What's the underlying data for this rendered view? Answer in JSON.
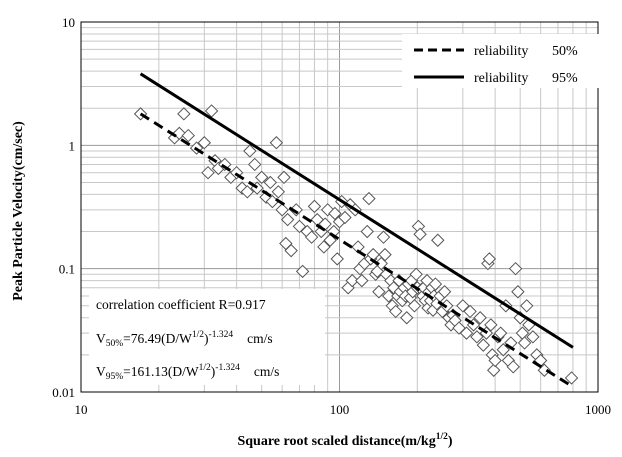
{
  "chart_data": {
    "type": "scatter",
    "xlabel": "Square root scaled distance(m/kg",
    "xlabel_sup": "1/2",
    "xlabel_tail": ")",
    "ylabel": "Peak Particle Velocity(cm/sec)",
    "x_scale": "log",
    "y_scale": "log",
    "xlim": [
      10,
      1000
    ],
    "ylim": [
      0.01,
      10
    ],
    "x_ticks": [
      "10",
      "100",
      "1000"
    ],
    "y_ticks": [
      "0.01",
      "0.1",
      "1",
      "10"
    ],
    "grid": true,
    "legend_position": "top-right",
    "legend": [
      {
        "label": "reliability",
        "value": "50%",
        "style": "dashed"
      },
      {
        "label": "reliability",
        "value": "95%",
        "style": "solid"
      }
    ],
    "annotations": {
      "correlation": "correlation  coefficient  R=0.917",
      "eq50": {
        "v": "V",
        "vsub": "50%",
        "pre": "=76.49(D/W",
        "sup1": "1/2",
        "mid": ")",
        "sup2": "-1.324",
        "unit": "cm/s"
      },
      "eq95": {
        "v": "V",
        "vsub": "95%",
        "pre": "=161.13(D/W",
        "sup1": "1/2",
        "mid": ")",
        "sup2": "-1.324",
        "unit": "cm/s"
      }
    },
    "series": [
      {
        "name": "reliability 50%",
        "type": "line",
        "style": "dashed",
        "x": [
          17,
          800
        ],
        "y": [
          1.8,
          0.011
        ]
      },
      {
        "name": "reliability 95%",
        "type": "line",
        "style": "solid",
        "x": [
          17,
          800
        ],
        "y": [
          3.8,
          0.023
        ]
      },
      {
        "type": "scatter",
        "marker": "diamond",
        "points": [
          [
            17,
            1.8
          ],
          [
            23,
            1.15
          ],
          [
            24,
            1.25
          ],
          [
            25,
            1.8
          ],
          [
            26,
            1.2
          ],
          [
            28,
            0.95
          ],
          [
            30,
            1.05
          ],
          [
            31,
            0.6
          ],
          [
            32,
            1.9
          ],
          [
            33,
            0.75
          ],
          [
            34,
            0.65
          ],
          [
            36,
            0.7
          ],
          [
            38,
            0.55
          ],
          [
            40,
            0.6
          ],
          [
            42,
            0.45
          ],
          [
            44,
            0.42
          ],
          [
            45,
            0.9
          ],
          [
            47,
            0.7
          ],
          [
            48,
            0.45
          ],
          [
            50,
            0.55
          ],
          [
            52,
            0.38
          ],
          [
            54,
            0.5
          ],
          [
            55,
            0.35
          ],
          [
            57,
            1.05
          ],
          [
            58,
            0.42
          ],
          [
            60,
            0.3
          ],
          [
            61,
            0.55
          ],
          [
            62,
            0.16
          ],
          [
            63,
            0.25
          ],
          [
            65,
            0.14
          ],
          [
            68,
            0.3
          ],
          [
            70,
            0.22
          ],
          [
            72,
            0.095
          ],
          [
            75,
            0.2
          ],
          [
            78,
            0.18
          ],
          [
            80,
            0.32
          ],
          [
            82,
            0.25
          ],
          [
            85,
            0.2
          ],
          [
            87,
            0.15
          ],
          [
            88,
            0.23
          ],
          [
            90,
            0.3
          ],
          [
            92,
            0.17
          ],
          [
            95,
            0.2
          ],
          [
            96,
            0.28
          ],
          [
            98,
            0.12
          ],
          [
            100,
            0.24
          ],
          [
            102,
            0.35
          ],
          [
            105,
            0.26
          ],
          [
            108,
            0.07
          ],
          [
            110,
            0.33
          ],
          [
            112,
            0.08
          ],
          [
            115,
            0.3
          ],
          [
            118,
            0.15
          ],
          [
            120,
            0.1
          ],
          [
            122,
            0.08
          ],
          [
            125,
            0.11
          ],
          [
            128,
            0.2
          ],
          [
            130,
            0.37
          ],
          [
            132,
            0.12
          ],
          [
            135,
            0.13
          ],
          [
            138,
            0.09
          ],
          [
            140,
            0.095
          ],
          [
            142,
            0.065
          ],
          [
            145,
            0.11
          ],
          [
            148,
            0.18
          ],
          [
            150,
            0.13
          ],
          [
            152,
            0.09
          ],
          [
            155,
            0.06
          ],
          [
            158,
            0.08
          ],
          [
            160,
            0.05
          ],
          [
            162,
            0.07
          ],
          [
            165,
            0.045
          ],
          [
            168,
            0.06
          ],
          [
            170,
            0.08
          ],
          [
            172,
            0.065
          ],
          [
            175,
            0.055
          ],
          [
            178,
            0.07
          ],
          [
            180,
            0.06
          ],
          [
            182,
            0.04
          ],
          [
            185,
            0.075
          ],
          [
            188,
            0.058
          ],
          [
            190,
            0.08
          ],
          [
            192,
            0.065
          ],
          [
            195,
            0.05
          ],
          [
            198,
            0.09
          ],
          [
            200,
            0.07
          ],
          [
            202,
            0.22
          ],
          [
            205,
            0.19
          ],
          [
            208,
            0.068
          ],
          [
            210,
            0.06
          ],
          [
            212,
            0.07
          ],
          [
            215,
            0.055
          ],
          [
            218,
            0.08
          ],
          [
            220,
            0.048
          ],
          [
            222,
            0.065
          ],
          [
            225,
            0.055
          ],
          [
            228,
            0.07
          ],
          [
            230,
            0.046
          ],
          [
            232,
            0.06
          ],
          [
            235,
            0.075
          ],
          [
            238,
            0.052
          ],
          [
            240,
            0.17
          ],
          [
            245,
            0.06
          ],
          [
            250,
            0.045
          ],
          [
            255,
            0.065
          ],
          [
            260,
            0.05
          ],
          [
            265,
            0.04
          ],
          [
            270,
            0.035
          ],
          [
            275,
            0.042
          ],
          [
            280,
            0.038
          ],
          [
            290,
            0.033
          ],
          [
            300,
            0.05
          ],
          [
            310,
            0.03
          ],
          [
            320,
            0.045
          ],
          [
            330,
            0.035
          ],
          [
            340,
            0.028
          ],
          [
            350,
            0.04
          ],
          [
            360,
            0.024
          ],
          [
            370,
            0.03
          ],
          [
            375,
            0.11
          ],
          [
            380,
            0.12
          ],
          [
            385,
            0.035
          ],
          [
            390,
            0.02
          ],
          [
            395,
            0.015
          ],
          [
            400,
            0.018
          ],
          [
            410,
            0.028
          ],
          [
            420,
            0.03
          ],
          [
            430,
            0.022
          ],
          [
            440,
            0.05
          ],
          [
            450,
            0.018
          ],
          [
            460,
            0.025
          ],
          [
            470,
            0.016
          ],
          [
            480,
            0.1
          ],
          [
            490,
            0.065
          ],
          [
            500,
            0.04
          ],
          [
            510,
            0.03
          ],
          [
            520,
            0.025
          ],
          [
            530,
            0.05
          ],
          [
            540,
            0.035
          ],
          [
            560,
            0.028
          ],
          [
            580,
            0.02
          ],
          [
            600,
            0.018
          ],
          [
            620,
            0.015
          ],
          [
            790,
            0.013
          ]
        ]
      }
    ]
  }
}
